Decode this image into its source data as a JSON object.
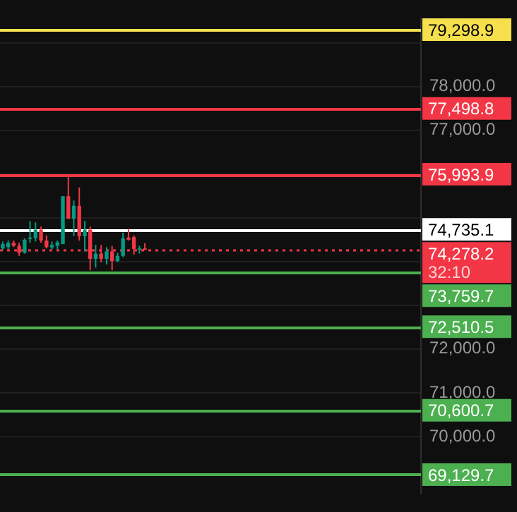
{
  "chart_data": {
    "type": "candlestick",
    "categories": [
      null,
      null,
      null,
      null,
      null,
      null,
      null,
      null,
      null,
      null,
      null,
      null,
      null,
      null,
      null,
      null,
      null,
      null,
      null,
      null,
      null,
      null,
      null,
      null,
      null,
      null,
      null,
      null,
      null,
      null,
      null,
      null,
      null,
      null,
      null,
      null,
      null,
      null,
      null,
      null,
      null,
      null,
      null,
      null,
      null,
      null,
      null,
      null,
      null,
      null,
      null,
      null,
      null,
      null,
      null,
      null,
      null,
      null,
      null,
      null,
      null,
      null,
      null,
      null,
      null,
      null,
      null,
      null,
      null,
      null,
      null,
      null,
      null,
      null,
      null,
      null,
      null
    ],
    "ohlc": [
      [
        74298,
        74458,
        74259,
        74398
      ],
      [
        74328,
        74477,
        74279,
        74428
      ],
      [
        74428,
        74477,
        74328,
        74358
      ],
      [
        74358,
        74428,
        74129,
        74199
      ],
      [
        74199,
        74527,
        74179,
        74497
      ],
      [
        74517,
        74925,
        74428,
        74547
      ],
      [
        74527,
        74895,
        74458,
        74726
      ],
      [
        74726,
        74796,
        74428,
        74477
      ],
      [
        74477,
        74597,
        74298,
        74328
      ],
      [
        74318,
        74458,
        74279,
        74378
      ],
      [
        74358,
        74477,
        74279,
        74438
      ],
      [
        74398,
        75492,
        74398,
        75492
      ],
      [
        75492,
        75970,
        74975,
        74975
      ],
      [
        74975,
        75393,
        74577,
        75273
      ],
      [
        75273,
        75691,
        74477,
        74577
      ],
      [
        74577,
        74925,
        74229,
        74726
      ],
      [
        74726,
        74796,
        73801,
        74060
      ],
      [
        74060,
        74378,
        73861,
        74179
      ],
      [
        74179,
        74378,
        73980,
        74060
      ],
      [
        74060,
        74328,
        73930,
        74229
      ],
      [
        74229,
        74358,
        73801,
        74010
      ],
      [
        74010,
        74199,
        73980,
        74129
      ],
      [
        74129,
        74657,
        74099,
        74527
      ],
      [
        74547,
        74746,
        74477,
        74497
      ],
      [
        74557,
        74597,
        74159,
        74288
      ],
      [
        74288,
        74358,
        74179,
        74298
      ],
      [
        74298,
        74418,
        74259,
        74278.2
      ],
      null,
      null,
      null,
      null,
      null,
      null,
      null,
      null,
      null,
      null,
      null,
      null,
      null,
      null,
      null,
      null,
      null,
      null,
      null,
      null,
      null,
      null,
      null,
      null,
      null,
      null,
      null,
      null,
      null,
      null,
      null,
      null,
      null,
      null,
      null,
      null,
      null,
      null,
      null,
      null,
      null,
      null,
      null,
      null,
      null,
      null,
      null,
      null,
      null,
      null
    ],
    "ylim": [
      68700,
      79550
    ],
    "yticks": [
      {
        "value": 70000,
        "label": "70,000.0"
      },
      {
        "value": 71000,
        "label": "71,000.0"
      },
      {
        "value": 72000,
        "label": "72,000.0"
      },
      {
        "value": 73000,
        "label": null
      },
      {
        "value": 74000,
        "label": null
      },
      {
        "value": 75000,
        "label": null
      },
      {
        "value": 76000,
        "label": null
      },
      {
        "value": 77000,
        "label": "77,000.0"
      },
      {
        "value": 78000,
        "label": "78,000.0"
      },
      {
        "value": 79000,
        "label": null
      }
    ],
    "tick_labels": "y",
    "grid": "y",
    "ref_lines": [
      {
        "axis": "y",
        "value": 79298.9,
        "label": "79,298.9",
        "color": "#f5df4d"
      },
      {
        "axis": "y",
        "value": 77498.8,
        "label": "77,498.8",
        "color": "#f23645"
      },
      {
        "axis": "y",
        "value": 75993.9,
        "label": "75,993.9",
        "color": "#f23645"
      },
      {
        "axis": "y",
        "value": 74735.1,
        "label": "74,735.1",
        "color": "#ffffff"
      },
      {
        "axis": "y",
        "value": 74278.2,
        "label": "74,278.2",
        "color": "#f23645",
        "line_style": "dotted"
      },
      {
        "axis": "y",
        "value": 73759.7,
        "label": "73,759.7",
        "color": "#4caf50"
      },
      {
        "axis": "y",
        "value": 72510.5,
        "label": "72,510.5",
        "color": "#4caf50"
      },
      {
        "axis": "y",
        "value": 70600.7,
        "label": "70,600.7",
        "color": "#4caf50"
      },
      {
        "axis": "y",
        "value": 69129.7,
        "label": "69,129.7",
        "color": "#4caf50"
      }
    ],
    "annotations": [
      "32:10"
    ]
  }
}
